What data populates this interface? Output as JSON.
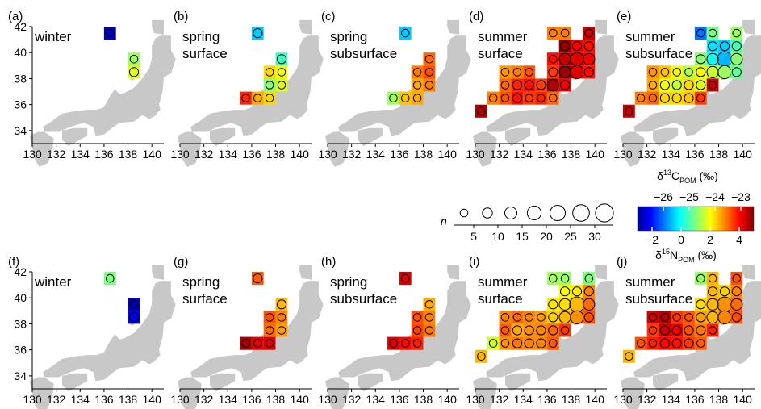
{
  "figure": {
    "x_ticks": [
      "130",
      "132",
      "134",
      "136",
      "138",
      "140"
    ],
    "y_ticks": [
      "34",
      "36",
      "38",
      "40",
      "42"
    ],
    "n_label": "n",
    "n_ticks": [
      "5",
      "10",
      "15",
      "20",
      "25",
      "30"
    ],
    "n_sizes": [
      3,
      7,
      12,
      17,
      22,
      27,
      32
    ],
    "land_color": "#c8c8c8"
  },
  "colorbars": {
    "carbon": {
      "label_main": "δ",
      "label_sup": "13",
      "label_letter": "C",
      "label_sub": "POM",
      "label_unit": " (‰)",
      "ticks": [
        "−26",
        "−25",
        "−24",
        "−23"
      ],
      "tick_values": [
        -26,
        -25,
        -24,
        -23
      ],
      "range": [
        -27,
        -22.5
      ]
    },
    "nitrogen": {
      "label_main": "δ",
      "label_sup": "15",
      "label_letter": "N",
      "label_sub": "POM",
      "label_unit": " (‰)",
      "ticks": [
        "−2",
        "0",
        "2",
        "4"
      ],
      "tick_values": [
        -2,
        0,
        2,
        4
      ],
      "range": [
        -3,
        5
      ]
    }
  },
  "chart_data": [
    {
      "type": "heatmap",
      "panel": "(a)",
      "title": "winter",
      "variable": "carbon",
      "cells": [
        {
          "x": 136,
          "y": 41,
          "v": -26.8,
          "n": 3
        },
        {
          "x": 138,
          "y": 39,
          "v": -24.6,
          "n": 3
        },
        {
          "x": 138,
          "y": 38,
          "v": -24.3,
          "n": 5
        }
      ]
    },
    {
      "type": "heatmap",
      "panel": "(b)",
      "title": "spring\nsurface",
      "variable": "carbon",
      "cells": [
        {
          "x": 136,
          "y": 41,
          "v": -25.6,
          "n": 5
        },
        {
          "x": 138,
          "y": 39,
          "v": -25.1,
          "n": 5
        },
        {
          "x": 137,
          "y": 38,
          "v": -24.0,
          "n": 3
        },
        {
          "x": 138,
          "y": 38,
          "v": -24.2,
          "n": 3
        },
        {
          "x": 137,
          "y": 37,
          "v": -24.7,
          "n": 3
        },
        {
          "x": 138,
          "y": 37,
          "v": -24.3,
          "n": 3
        },
        {
          "x": 135,
          "y": 36,
          "v": -23.2,
          "n": 3
        },
        {
          "x": 136,
          "y": 36,
          "v": -23.8,
          "n": 3
        },
        {
          "x": 137,
          "y": 36,
          "v": -24.0,
          "n": 3
        }
      ]
    },
    {
      "type": "heatmap",
      "panel": "(c)",
      "title": "spring\nsubsurface",
      "variable": "carbon",
      "cells": [
        {
          "x": 136,
          "y": 41,
          "v": -25.6,
          "n": 3
        },
        {
          "x": 138,
          "y": 39,
          "v": -23.5,
          "n": 3
        },
        {
          "x": 137,
          "y": 38,
          "v": -23.6,
          "n": 3
        },
        {
          "x": 138,
          "y": 38,
          "v": -23.4,
          "n": 3
        },
        {
          "x": 137,
          "y": 37,
          "v": -23.8,
          "n": 3
        },
        {
          "x": 138,
          "y": 37,
          "v": -23.6,
          "n": 3
        },
        {
          "x": 135,
          "y": 36,
          "v": -24.6,
          "n": 3
        },
        {
          "x": 136,
          "y": 36,
          "v": -23.9,
          "n": 3
        },
        {
          "x": 137,
          "y": 36,
          "v": -23.8,
          "n": 3
        }
      ]
    },
    {
      "type": "heatmap",
      "panel": "(d)",
      "title": "summer\nsurface",
      "variable": "carbon",
      "cells": [
        {
          "x": 136,
          "y": 41,
          "v": -23.6,
          "n": 3
        },
        {
          "x": 137,
          "y": 41,
          "v": -23.6,
          "n": 3
        },
        {
          "x": 139,
          "y": 41,
          "v": -22.8,
          "n": 3
        },
        {
          "x": 137,
          "y": 40,
          "v": -22.6,
          "n": 5
        },
        {
          "x": 138,
          "y": 40,
          "v": -23.0,
          "n": 5
        },
        {
          "x": 139,
          "y": 40,
          "v": -23.1,
          "n": 5
        },
        {
          "x": 136,
          "y": 39,
          "v": -23.1,
          "n": 3
        },
        {
          "x": 137,
          "y": 39,
          "v": -22.8,
          "n": 10
        },
        {
          "x": 138,
          "y": 39,
          "v": -22.9,
          "n": 15
        },
        {
          "x": 139,
          "y": 39,
          "v": -23.0,
          "n": 10
        },
        {
          "x": 136,
          "y": 38,
          "v": -23.3,
          "n": 5
        },
        {
          "x": 137,
          "y": 38,
          "v": -22.6,
          "n": 10
        },
        {
          "x": 138,
          "y": 38,
          "v": -22.9,
          "n": 15
        },
        {
          "x": 139,
          "y": 38,
          "v": -23.1,
          "n": 5
        },
        {
          "x": 132,
          "y": 38,
          "v": -23.7,
          "n": 3
        },
        {
          "x": 133,
          "y": 38,
          "v": -23.6,
          "n": 3
        },
        {
          "x": 134,
          "y": 38,
          "v": -23.4,
          "n": 3
        },
        {
          "x": 132,
          "y": 37,
          "v": -23.5,
          "n": 3
        },
        {
          "x": 133,
          "y": 37,
          "v": -23.2,
          "n": 5
        },
        {
          "x": 134,
          "y": 37,
          "v": -23.1,
          "n": 5
        },
        {
          "x": 135,
          "y": 37,
          "v": -23.3,
          "n": 5
        },
        {
          "x": 136,
          "y": 37,
          "v": -22.7,
          "n": 10
        },
        {
          "x": 137,
          "y": 37,
          "v": -23.0,
          "n": 5
        },
        {
          "x": 131,
          "y": 36,
          "v": -23.6,
          "n": 3
        },
        {
          "x": 132,
          "y": 36,
          "v": -23.4,
          "n": 3
        },
        {
          "x": 133,
          "y": 36,
          "v": -23.1,
          "n": 5
        },
        {
          "x": 134,
          "y": 36,
          "v": -23.3,
          "n": 3
        },
        {
          "x": 135,
          "y": 36,
          "v": -23.2,
          "n": 3
        },
        {
          "x": 136,
          "y": 36,
          "v": -23.5,
          "n": 3
        },
        {
          "x": 130,
          "y": 35,
          "v": -22.7,
          "n": 3
        }
      ]
    },
    {
      "type": "heatmap",
      "panel": "(e)",
      "title": "summer\nsubsurface",
      "variable": "carbon",
      "cells": [
        {
          "x": 136,
          "y": 41,
          "v": -26.0,
          "n": 3
        },
        {
          "x": 137,
          "y": 41,
          "v": -24.8,
          "n": 3
        },
        {
          "x": 139,
          "y": 41,
          "v": -24.6,
          "n": 3
        },
        {
          "x": 137,
          "y": 40,
          "v": -25.5,
          "n": 5
        },
        {
          "x": 138,
          "y": 40,
          "v": -25.6,
          "n": 5
        },
        {
          "x": 139,
          "y": 40,
          "v": -25.0,
          "n": 5
        },
        {
          "x": 136,
          "y": 39,
          "v": -24.7,
          "n": 5
        },
        {
          "x": 137,
          "y": 39,
          "v": -25.3,
          "n": 10
        },
        {
          "x": 138,
          "y": 39,
          "v": -25.7,
          "n": 20
        },
        {
          "x": 139,
          "y": 39,
          "v": -24.7,
          "n": 10
        },
        {
          "x": 132,
          "y": 38,
          "v": -23.7,
          "n": 3
        },
        {
          "x": 133,
          "y": 38,
          "v": -23.9,
          "n": 3
        },
        {
          "x": 134,
          "y": 38,
          "v": -24.2,
          "n": 3
        },
        {
          "x": 135,
          "y": 38,
          "v": -24.5,
          "n": 3
        },
        {
          "x": 136,
          "y": 38,
          "v": -24.2,
          "n": 5
        },
        {
          "x": 137,
          "y": 38,
          "v": -24.4,
          "n": 10
        },
        {
          "x": 138,
          "y": 38,
          "v": -24.6,
          "n": 15
        },
        {
          "x": 139,
          "y": 38,
          "v": -24.9,
          "n": 5
        },
        {
          "x": 132,
          "y": 37,
          "v": -23.8,
          "n": 3
        },
        {
          "x": 133,
          "y": 37,
          "v": -24.2,
          "n": 5
        },
        {
          "x": 134,
          "y": 37,
          "v": -24.4,
          "n": 5
        },
        {
          "x": 135,
          "y": 37,
          "v": -24.0,
          "n": 5
        },
        {
          "x": 136,
          "y": 37,
          "v": -24.3,
          "n": 5
        },
        {
          "x": 137,
          "y": 37,
          "v": -22.8,
          "n": 3
        },
        {
          "x": 131,
          "y": 36,
          "v": -23.6,
          "n": 3
        },
        {
          "x": 132,
          "y": 36,
          "v": -23.5,
          "n": 3
        },
        {
          "x": 133,
          "y": 36,
          "v": -24.0,
          "n": 5
        },
        {
          "x": 134,
          "y": 36,
          "v": -24.0,
          "n": 5
        },
        {
          "x": 135,
          "y": 36,
          "v": -23.9,
          "n": 5
        },
        {
          "x": 136,
          "y": 36,
          "v": -23.3,
          "n": 3
        },
        {
          "x": 130,
          "y": 35,
          "v": -22.8,
          "n": 3
        }
      ]
    },
    {
      "type": "heatmap",
      "panel": "(f)",
      "title": "winter",
      "variable": "nitrogen",
      "cells": [
        {
          "x": 136,
          "y": 41,
          "v": 1.0,
          "n": 3
        },
        {
          "x": 138,
          "y": 39,
          "v": -2.7,
          "n": 3
        },
        {
          "x": 138,
          "y": 38,
          "v": -2.3,
          "n": 5
        }
      ]
    },
    {
      "type": "heatmap",
      "panel": "(g)",
      "title": "spring\nsurface",
      "variable": "nitrogen",
      "cells": [
        {
          "x": 136,
          "y": 41,
          "v": 3.3,
          "n": 5
        },
        {
          "x": 138,
          "y": 39,
          "v": 2.6,
          "n": 5
        },
        {
          "x": 137,
          "y": 38,
          "v": 3.4,
          "n": 3
        },
        {
          "x": 138,
          "y": 38,
          "v": 3.0,
          "n": 3
        },
        {
          "x": 137,
          "y": 37,
          "v": 3.2,
          "n": 3
        },
        {
          "x": 138,
          "y": 37,
          "v": 2.8,
          "n": 3
        },
        {
          "x": 135,
          "y": 36,
          "v": 4.7,
          "n": 3
        },
        {
          "x": 136,
          "y": 36,
          "v": 4.2,
          "n": 3
        },
        {
          "x": 137,
          "y": 36,
          "v": 4.3,
          "n": 3
        }
      ]
    },
    {
      "type": "heatmap",
      "panel": "(h)",
      "title": "spring\nsubsurface",
      "variable": "nitrogen",
      "cells": [
        {
          "x": 136,
          "y": 41,
          "v": 4.3,
          "n": 3
        },
        {
          "x": 138,
          "y": 39,
          "v": 2.7,
          "n": 3
        },
        {
          "x": 137,
          "y": 38,
          "v": 3.4,
          "n": 3
        },
        {
          "x": 138,
          "y": 38,
          "v": 3.0,
          "n": 3
        },
        {
          "x": 137,
          "y": 37,
          "v": 3.5,
          "n": 3
        },
        {
          "x": 138,
          "y": 37,
          "v": 3.1,
          "n": 3
        },
        {
          "x": 135,
          "y": 36,
          "v": 4.3,
          "n": 3
        },
        {
          "x": 136,
          "y": 36,
          "v": 4.0,
          "n": 3
        },
        {
          "x": 137,
          "y": 36,
          "v": 3.8,
          "n": 3
        }
      ]
    },
    {
      "type": "heatmap",
      "panel": "(i)",
      "title": "summer\nsurface",
      "variable": "nitrogen",
      "cells": [
        {
          "x": 136,
          "y": 41,
          "v": 1.3,
          "n": 3
        },
        {
          "x": 137,
          "y": 41,
          "v": 1.2,
          "n": 3
        },
        {
          "x": 139,
          "y": 41,
          "v": 1.0,
          "n": 3
        },
        {
          "x": 137,
          "y": 40,
          "v": 2.0,
          "n": 5
        },
        {
          "x": 138,
          "y": 40,
          "v": 2.2,
          "n": 5
        },
        {
          "x": 139,
          "y": 40,
          "v": 3.0,
          "n": 5
        },
        {
          "x": 136,
          "y": 39,
          "v": 2.2,
          "n": 5
        },
        {
          "x": 137,
          "y": 39,
          "v": 2.3,
          "n": 10
        },
        {
          "x": 138,
          "y": 39,
          "v": 2.6,
          "n": 20
        },
        {
          "x": 139,
          "y": 39,
          "v": 3.2,
          "n": 10
        },
        {
          "x": 132,
          "y": 38,
          "v": 3.0,
          "n": 3
        },
        {
          "x": 133,
          "y": 38,
          "v": 3.2,
          "n": 3
        },
        {
          "x": 134,
          "y": 38,
          "v": 3.0,
          "n": 3
        },
        {
          "x": 135,
          "y": 38,
          "v": 2.8,
          "n": 3
        },
        {
          "x": 136,
          "y": 38,
          "v": 2.4,
          "n": 5
        },
        {
          "x": 137,
          "y": 38,
          "v": 2.6,
          "n": 10
        },
        {
          "x": 138,
          "y": 38,
          "v": 2.9,
          "n": 15
        },
        {
          "x": 139,
          "y": 38,
          "v": 3.4,
          "n": 5
        },
        {
          "x": 132,
          "y": 37,
          "v": 3.3,
          "n": 3
        },
        {
          "x": 133,
          "y": 37,
          "v": 2.7,
          "n": 5
        },
        {
          "x": 134,
          "y": 37,
          "v": 2.9,
          "n": 5
        },
        {
          "x": 135,
          "y": 37,
          "v": 3.0,
          "n": 5
        },
        {
          "x": 136,
          "y": 37,
          "v": 3.2,
          "n": 5
        },
        {
          "x": 137,
          "y": 37,
          "v": 3.6,
          "n": 3
        },
        {
          "x": 131,
          "y": 36,
          "v": 1.7,
          "n": 3
        },
        {
          "x": 132,
          "y": 36,
          "v": 2.9,
          "n": 3
        },
        {
          "x": 133,
          "y": 36,
          "v": 3.1,
          "n": 5
        },
        {
          "x": 134,
          "y": 36,
          "v": 3.0,
          "n": 5
        },
        {
          "x": 135,
          "y": 36,
          "v": 3.0,
          "n": 5
        },
        {
          "x": 136,
          "y": 36,
          "v": 3.3,
          "n": 3
        },
        {
          "x": 130,
          "y": 35,
          "v": 2.6,
          "n": 3
        }
      ]
    },
    {
      "type": "heatmap",
      "panel": "(j)",
      "title": "summer\nsubsurface",
      "variable": "nitrogen",
      "cells": [
        {
          "x": 136,
          "y": 41,
          "v": 1.2,
          "n": 3
        },
        {
          "x": 137,
          "y": 41,
          "v": 2.6,
          "n": 3
        },
        {
          "x": 139,
          "y": 41,
          "v": 3.4,
          "n": 3
        },
        {
          "x": 137,
          "y": 40,
          "v": 2.6,
          "n": 5
        },
        {
          "x": 138,
          "y": 40,
          "v": 2.4,
          "n": 5
        },
        {
          "x": 139,
          "y": 40,
          "v": 3.0,
          "n": 5
        },
        {
          "x": 136,
          "y": 39,
          "v": 2.3,
          "n": 5
        },
        {
          "x": 137,
          "y": 39,
          "v": 2.6,
          "n": 10
        },
        {
          "x": 138,
          "y": 39,
          "v": 2.9,
          "n": 20
        },
        {
          "x": 139,
          "y": 39,
          "v": 3.2,
          "n": 10
        },
        {
          "x": 132,
          "y": 38,
          "v": 4.4,
          "n": 3
        },
        {
          "x": 133,
          "y": 38,
          "v": 4.6,
          "n": 3
        },
        {
          "x": 134,
          "y": 38,
          "v": 3.6,
          "n": 3
        },
        {
          "x": 135,
          "y": 38,
          "v": 3.4,
          "n": 3
        },
        {
          "x": 136,
          "y": 38,
          "v": 2.8,
          "n": 5
        },
        {
          "x": 137,
          "y": 38,
          "v": 2.6,
          "n": 10
        },
        {
          "x": 138,
          "y": 38,
          "v": 3.0,
          "n": 15
        },
        {
          "x": 139,
          "y": 38,
          "v": 3.4,
          "n": 5
        },
        {
          "x": 132,
          "y": 37,
          "v": 3.6,
          "n": 3
        },
        {
          "x": 133,
          "y": 37,
          "v": 4.4,
          "n": 5
        },
        {
          "x": 134,
          "y": 37,
          "v": 4.2,
          "n": 5
        },
        {
          "x": 135,
          "y": 37,
          "v": 3.4,
          "n": 5
        },
        {
          "x": 136,
          "y": 37,
          "v": 3.1,
          "n": 5
        },
        {
          "x": 137,
          "y": 37,
          "v": 3.8,
          "n": 3
        },
        {
          "x": 131,
          "y": 36,
          "v": 3.4,
          "n": 3
        },
        {
          "x": 132,
          "y": 36,
          "v": 3.8,
          "n": 3
        },
        {
          "x": 133,
          "y": 36,
          "v": 4.0,
          "n": 5
        },
        {
          "x": 134,
          "y": 36,
          "v": 3.9,
          "n": 5
        },
        {
          "x": 135,
          "y": 36,
          "v": 3.6,
          "n": 5
        },
        {
          "x": 136,
          "y": 36,
          "v": 3.3,
          "n": 3
        },
        {
          "x": 130,
          "y": 35,
          "v": 2.6,
          "n": 3
        }
      ]
    }
  ]
}
